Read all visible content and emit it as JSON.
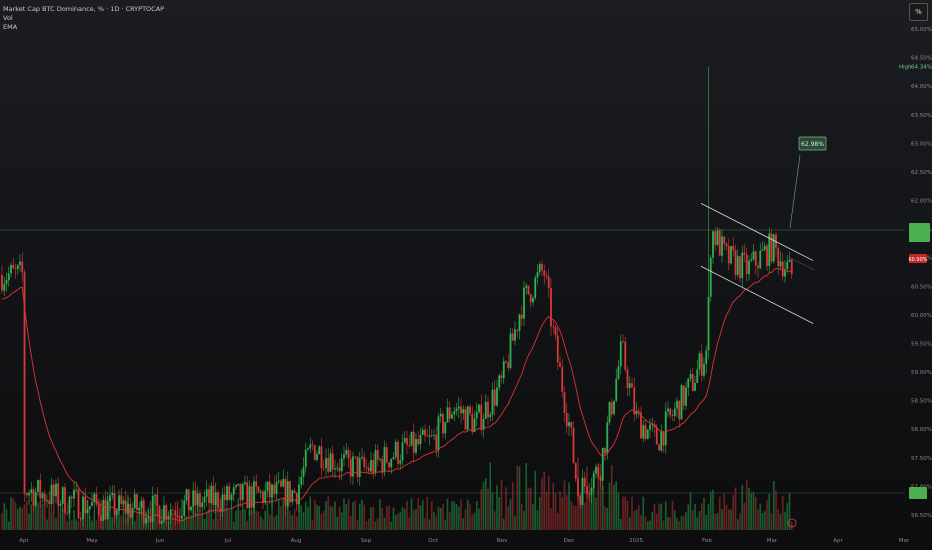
{
  "legend": {
    "symbol_line": "Market Cap BTC Dominance, % · 1D · CRYPTOCAP",
    "volume": "Vol",
    "ema": "EMA"
  },
  "scale_button": "%",
  "high_label": {
    "prefix": "High",
    "value": "64.34%"
  },
  "target_label": "62.98%",
  "price_badges": {
    "current": "",
    "ema": "60.90%",
    "volume": ""
  },
  "colors": {
    "up": "#2fb350",
    "down": "#d63a3a",
    "ema": "#d93434",
    "channel": "#d8d8d8",
    "background": "#131417",
    "badge_green": "#4caf50",
    "badge_red": "#c62828"
  },
  "chart_data": {
    "type": "candlestick",
    "y_axis": {
      "unit": "%",
      "ticks": [
        "65.00%",
        "64.50%",
        "64.00%",
        "63.50%",
        "63.00%",
        "62.50%",
        "62.00%",
        "61.50%",
        "61.00%",
        "60.50%",
        "60.00%",
        "59.50%",
        "59.00%",
        "58.50%",
        "58.00%",
        "57.50%",
        "57.00%",
        "56.50%"
      ],
      "range": [
        56.35,
        65.15
      ]
    },
    "x_axis": {
      "ticks": [
        "Apr",
        "May",
        "Jun",
        "Jul",
        "Aug",
        "Sep",
        "Oct",
        "Nov",
        "Dec",
        "2025",
        "Feb",
        "Mar",
        "Apr",
        "Mar"
      ]
    },
    "anchors": [
      [
        "Apr",
        56.95
      ],
      [
        "May",
        56.65
      ],
      [
        "Jun",
        56.6
      ],
      [
        "Jul",
        56.8
      ],
      [
        "Aug",
        56.9
      ],
      [
        "Aug 8",
        57.7
      ],
      [
        "Aug 20",
        57.4
      ],
      [
        "Sep",
        57.3
      ],
      [
        "Sep 15",
        57.6
      ],
      [
        "Oct",
        57.8
      ],
      [
        "Oct 10",
        58.4
      ],
      [
        "Oct 20",
        58.1
      ],
      [
        "Nov",
        58.8
      ],
      [
        "Nov 10",
        60.2
      ],
      [
        "Nov 20",
        60.8
      ],
      [
        "Nov 25",
        59.5
      ],
      [
        "Dec",
        58.1
      ],
      [
        "Dec 5",
        56.9
      ],
      [
        "Dec 15",
        57.3
      ],
      [
        "Dec 25",
        59.4
      ],
      [
        "2025",
        58.2
      ],
      [
        "Jan 10",
        57.8
      ],
      [
        "Jan 25",
        58.8
      ],
      [
        "Feb",
        59.4
      ],
      [
        "Feb 3",
        61.5
      ],
      [
        "Feb 10",
        61.0
      ],
      [
        "Feb 20",
        60.8
      ],
      [
        "Mar",
        61.2
      ],
      [
        "Mar 10",
        60.7
      ]
    ],
    "high": {
      "value": 64.34
    },
    "channel": {
      "upper": [
        [
          "Feb",
          61.95
        ],
        [
          "Mar 20",
          60.95
        ]
      ],
      "lower": [
        [
          "Feb",
          60.85
        ],
        [
          "Mar 20",
          59.85
        ]
      ]
    },
    "projection_target": 62.98
  }
}
